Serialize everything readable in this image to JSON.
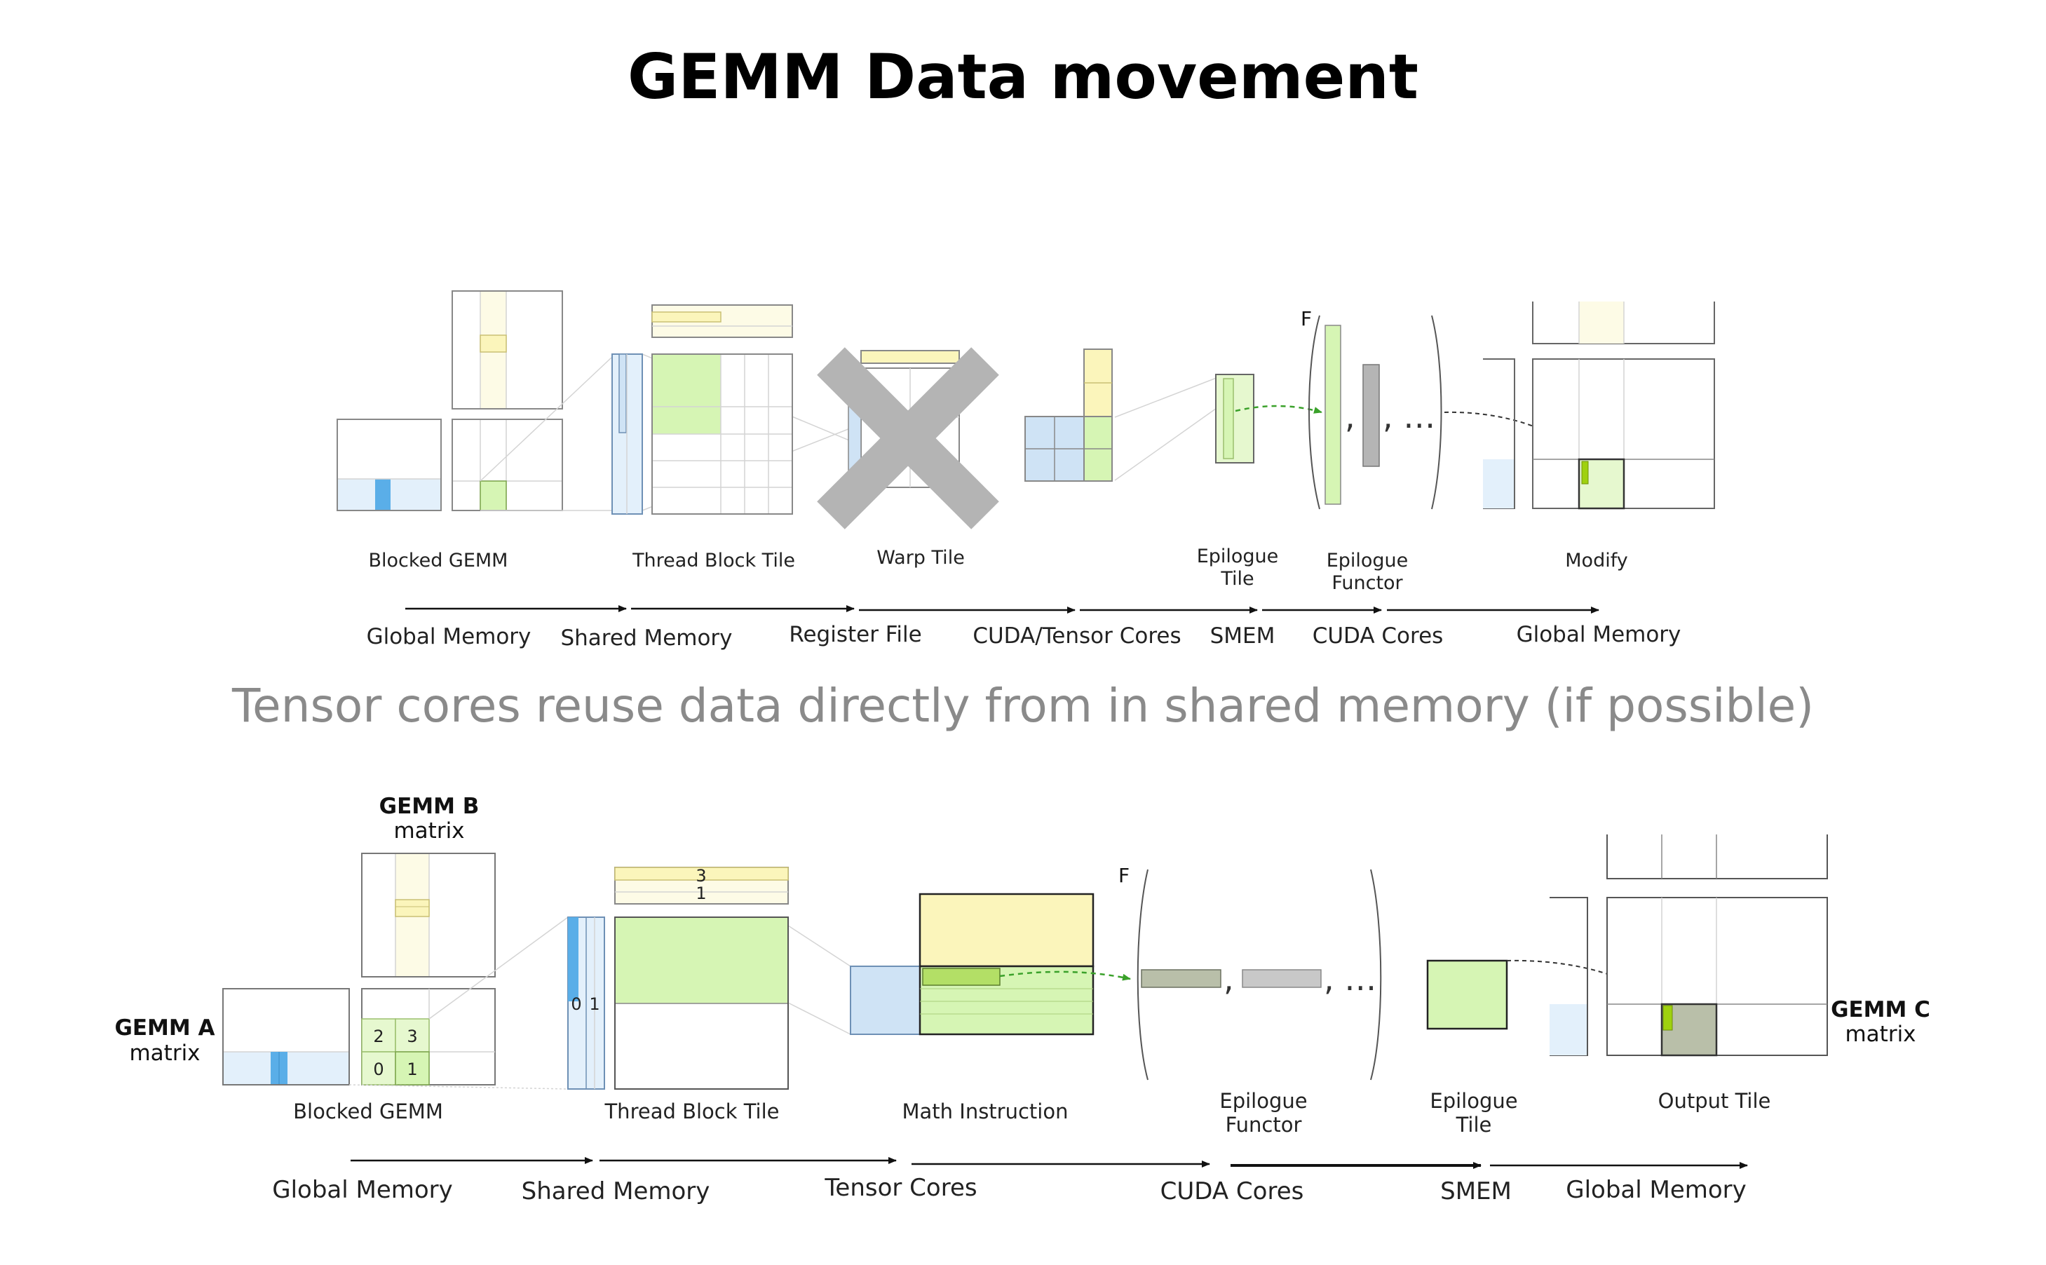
{
  "title": "GEMM Data movement",
  "subtitle": "Tensor cores reuse data directly from in shared memory (if possible)",
  "top_pipeline": {
    "stage_labels": {
      "blocked_gemm": "Blocked GEMM",
      "thread_block_tile": "Thread Block Tile",
      "warp_tile": "Warp Tile",
      "epilogue_tile": [
        "Epilogue",
        "Tile"
      ],
      "epilogue_functor": [
        "Epilogue",
        "Functor"
      ],
      "modify": "Modify",
      "functor_symbol": "F",
      "functor_sep1": ",",
      "functor_sep2": ", …"
    },
    "memory_stages": [
      "Global Memory",
      "Shared Memory",
      "Register File",
      "CUDA/Tensor Cores",
      "SMEM",
      "CUDA Cores",
      "Global Memory"
    ]
  },
  "bottom_pipeline": {
    "matrix_labels": {
      "gemm_b": [
        "GEMM B",
        "matrix"
      ],
      "gemm_a": [
        "GEMM A",
        "matrix"
      ],
      "gemm_c": [
        "GEMM C",
        "matrix"
      ]
    },
    "tile_numbers": {
      "blocked": [
        "2",
        "3",
        "0",
        "1"
      ],
      "a_strip": [
        "0",
        "1"
      ],
      "b_strip": [
        "3",
        "1"
      ]
    },
    "stage_labels": {
      "blocked_gemm": "Blocked GEMM",
      "thread_block_tile": "Thread Block Tile",
      "math_instruction": "Math Instruction",
      "epilogue_functor": [
        "Epilogue",
        "Functor"
      ],
      "epilogue_tile": [
        "Epilogue",
        "Tile"
      ],
      "output_tile": "Output Tile",
      "functor_symbol": "F",
      "functor_sep1": ",",
      "functor_sep2": ", …"
    },
    "memory_stages": [
      "Global Memory",
      "Shared Memory",
      "Tensor Cores",
      "CUDA Cores",
      "SMEM",
      "Global Memory"
    ]
  },
  "colors": {
    "blue_light": "#e3f0fb",
    "blue_mid": "#cfe3f5",
    "blue_strong": "#5aaee8",
    "yellow_light": "#fdfbe6",
    "yellow_mid": "#fbf5bb",
    "green_light": "#e6f8cf",
    "green_mid": "#d6f5b4",
    "green_strong": "#b3df66",
    "lime": "#9fd10f",
    "olive_gray": "#b9bfa9",
    "gray_bar": "#b5b5b5",
    "cross": "#b4b4b4",
    "arrow_green": "#3aa12a"
  }
}
